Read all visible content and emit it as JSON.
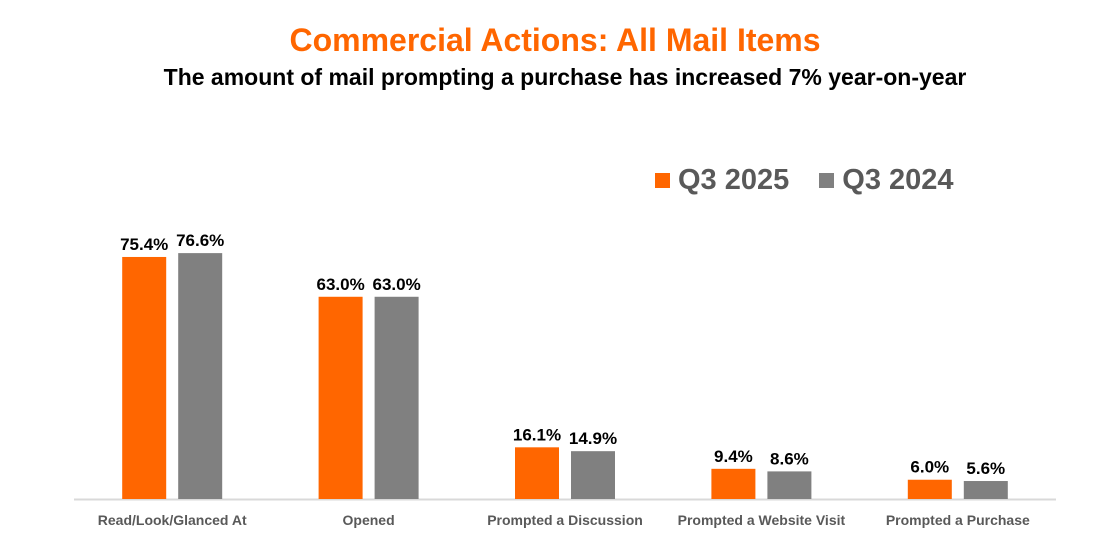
{
  "chart_data": {
    "type": "bar",
    "title": "Commercial Actions: All Mail Items",
    "subtitle": "The amount of mail prompting a purchase has increased 7% year-on-year",
    "categories": [
      "Read/Look/Glanced At",
      "Opened",
      "Prompted a Discussion",
      "Prompted a Website Visit",
      "Prompted a Purchase"
    ],
    "series": [
      {
        "name": "Q3 2025",
        "color": "#FF6600",
        "values": [
          75.4,
          63.0,
          16.1,
          9.4,
          6.0
        ],
        "labels": [
          "75.4%",
          "63.0%",
          "16.1%",
          "9.4%",
          "6.0%"
        ]
      },
      {
        "name": "Q3 2024",
        "color": "#808080",
        "values": [
          76.6,
          63.0,
          14.9,
          8.6,
          5.6
        ],
        "labels": [
          "76.6%",
          "63.0%",
          "14.9%",
          "8.6%",
          "5.6%"
        ]
      }
    ],
    "ylim": [
      0,
      100
    ],
    "grid": false,
    "legend": "top-right",
    "xlabel": "",
    "ylabel": ""
  }
}
